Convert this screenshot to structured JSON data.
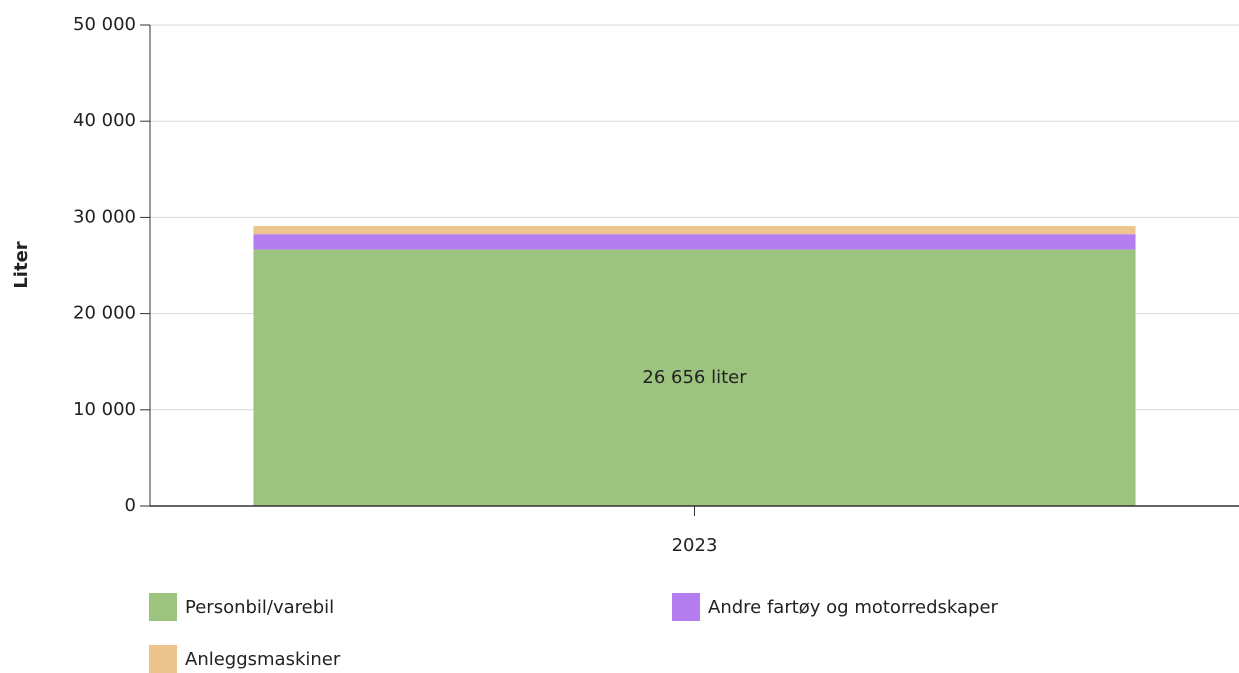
{
  "chart_data": {
    "type": "stacked_bar",
    "y_label": "Liter",
    "categories": [
      "2023"
    ],
    "series": [
      {
        "name": "Personbil/varebil",
        "color": "#9dc47e",
        "values": [
          26656
        ],
        "value_labels": [
          "26 656 liter"
        ]
      },
      {
        "name": "Andre fartøy og motorredskaper",
        "color": "#b57ef0",
        "values": [
          1600
        ]
      },
      {
        "name": "Anleggsmaskiner",
        "color": "#ecc48e",
        "values": [
          850
        ]
      }
    ],
    "ylim": [
      0,
      50000
    ],
    "yticks": [
      0,
      {
        "value": 10000,
        "label": "10 000"
      },
      {
        "value": 20000,
        "label": "20 000"
      },
      {
        "value": 30000,
        "label": "30 000"
      },
      {
        "value": 40000,
        "label": "40 000"
      },
      {
        "value": 50000,
        "label": "50 000"
      }
    ],
    "grid": true,
    "legend": "bottom"
  }
}
